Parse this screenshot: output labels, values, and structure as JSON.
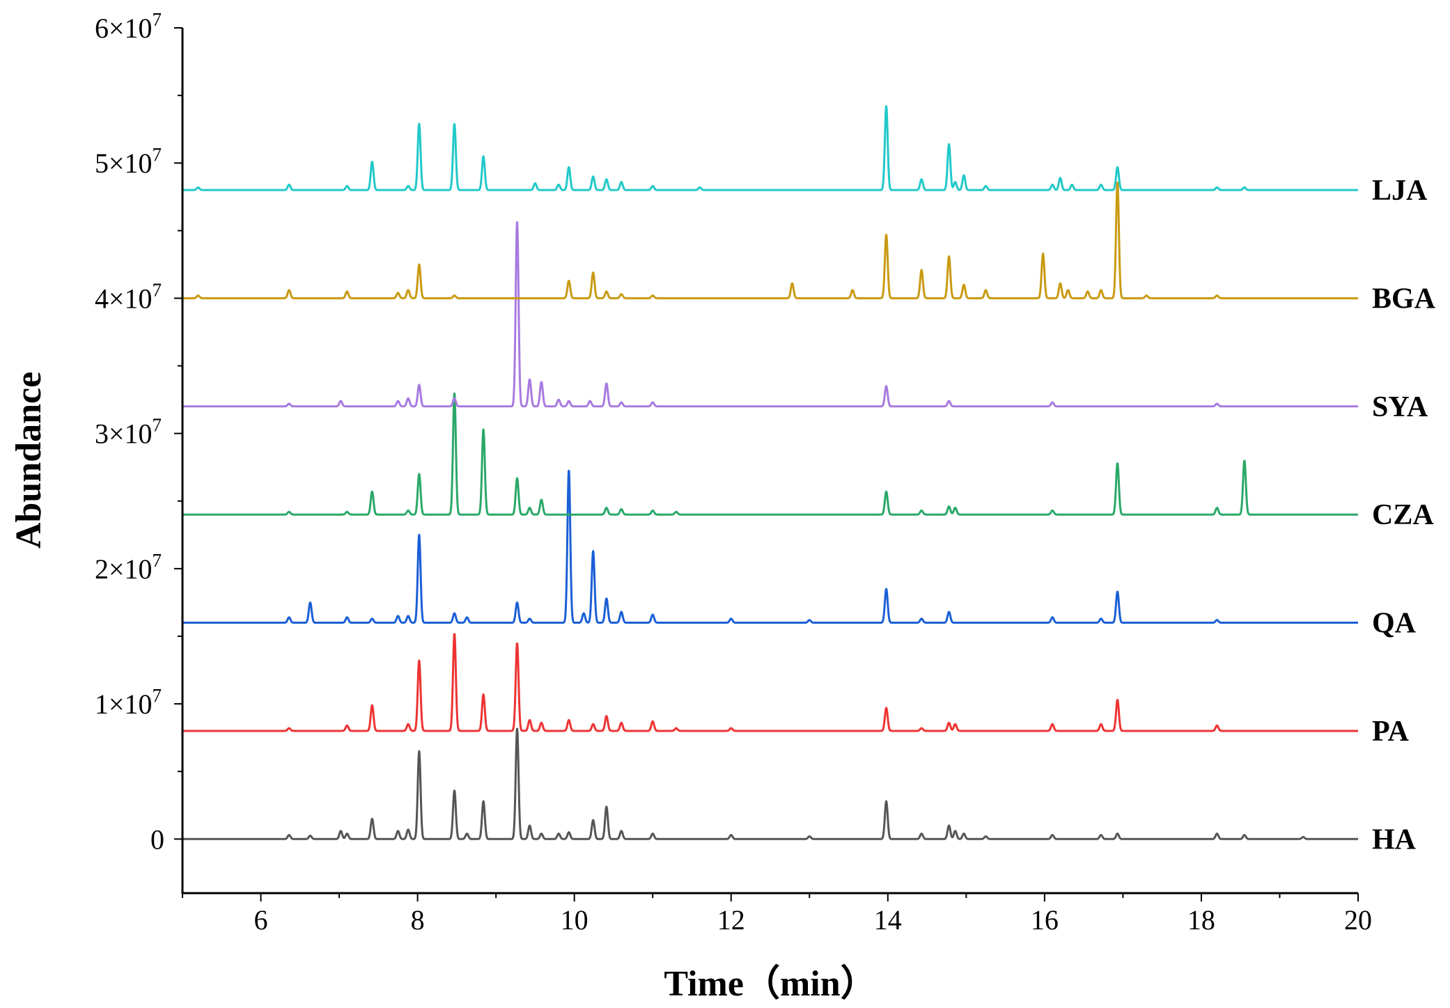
{
  "chart_data": {
    "type": "line",
    "title": "",
    "xlabel": "Time（min）",
    "ylabel": "Abundance",
    "xlim": [
      5,
      20
    ],
    "ylim": [
      -4000000,
      60000000
    ],
    "x_ticks": [
      6,
      8,
      10,
      12,
      14,
      16,
      18,
      20
    ],
    "x_tick_labels": [
      "6",
      "8",
      "10",
      "12",
      "14",
      "16",
      "18",
      "20"
    ],
    "y_ticks": [
      0,
      10000000,
      20000000,
      30000000,
      40000000,
      50000000,
      60000000
    ],
    "y_tick_labels": [
      {
        "mantissa": "0",
        "exponent": ""
      },
      {
        "mantissa": "1×10",
        "exponent": "7"
      },
      {
        "mantissa": "2×10",
        "exponent": "7"
      },
      {
        "mantissa": "3×10",
        "exponent": "7"
      },
      {
        "mantissa": "4×10",
        "exponent": "7"
      },
      {
        "mantissa": "5×10",
        "exponent": "7"
      },
      {
        "mantissa": "6×10",
        "exponent": "7"
      }
    ],
    "grid": false,
    "legend": "series labels at right end of each trace",
    "series": [
      {
        "name": "HA",
        "color": "#555555",
        "baseline": 0,
        "peaks": [
          [
            6.36,
            0.3
          ],
          [
            6.63,
            0.25
          ],
          [
            7.02,
            0.6
          ],
          [
            7.1,
            0.4
          ],
          [
            7.42,
            1.5
          ],
          [
            7.75,
            0.6
          ],
          [
            7.88,
            0.7
          ],
          [
            8.02,
            6.5
          ],
          [
            8.47,
            3.6
          ],
          [
            8.63,
            0.4
          ],
          [
            8.84,
            2.8
          ],
          [
            9.27,
            8.2
          ],
          [
            9.43,
            1.0
          ],
          [
            9.58,
            0.4
          ],
          [
            9.8,
            0.4
          ],
          [
            9.93,
            0.5
          ],
          [
            10.24,
            1.4
          ],
          [
            10.41,
            2.4
          ],
          [
            10.6,
            0.6
          ],
          [
            11.0,
            0.4
          ],
          [
            12.0,
            0.3
          ],
          [
            13.0,
            0.2
          ],
          [
            13.98,
            2.8
          ],
          [
            14.43,
            0.4
          ],
          [
            14.78,
            1.0
          ],
          [
            14.86,
            0.6
          ],
          [
            14.97,
            0.4
          ],
          [
            15.25,
            0.2
          ],
          [
            16.1,
            0.3
          ],
          [
            16.72,
            0.3
          ],
          [
            16.93,
            0.4
          ],
          [
            18.2,
            0.4
          ],
          [
            18.55,
            0.3
          ],
          [
            19.3,
            0.15
          ]
        ]
      },
      {
        "name": "PA",
        "color": "#ee3333",
        "baseline": 8000000,
        "peaks": [
          [
            6.36,
            0.2
          ],
          [
            7.1,
            0.4
          ],
          [
            7.42,
            1.9
          ],
          [
            7.88,
            0.5
          ],
          [
            8.02,
            5.2
          ],
          [
            8.47,
            7.2
          ],
          [
            8.84,
            2.7
          ],
          [
            9.27,
            6.5
          ],
          [
            9.43,
            0.8
          ],
          [
            9.58,
            0.6
          ],
          [
            9.93,
            0.8
          ],
          [
            10.24,
            0.5
          ],
          [
            10.41,
            1.1
          ],
          [
            10.6,
            0.6
          ],
          [
            11.0,
            0.7
          ],
          [
            11.3,
            0.2
          ],
          [
            12.0,
            0.2
          ],
          [
            13.98,
            1.7
          ],
          [
            14.43,
            0.2
          ],
          [
            14.78,
            0.6
          ],
          [
            14.86,
            0.5
          ],
          [
            16.1,
            0.5
          ],
          [
            16.72,
            0.5
          ],
          [
            16.93,
            2.3
          ],
          [
            18.2,
            0.4
          ]
        ]
      },
      {
        "name": "QA",
        "color": "#1a5fd6",
        "baseline": 16000000,
        "peaks": [
          [
            6.36,
            0.4
          ],
          [
            6.63,
            1.5
          ],
          [
            7.1,
            0.4
          ],
          [
            7.42,
            0.3
          ],
          [
            7.75,
            0.5
          ],
          [
            7.88,
            0.5
          ],
          [
            8.02,
            6.5
          ],
          [
            8.47,
            0.7
          ],
          [
            8.63,
            0.4
          ],
          [
            9.27,
            1.5
          ],
          [
            9.43,
            0.3
          ],
          [
            9.93,
            11.3
          ],
          [
            10.12,
            0.7
          ],
          [
            10.24,
            5.3
          ],
          [
            10.41,
            1.8
          ],
          [
            10.6,
            0.8
          ],
          [
            11.0,
            0.6
          ],
          [
            12.0,
            0.3
          ],
          [
            13.0,
            0.2
          ],
          [
            13.98,
            2.5
          ],
          [
            14.43,
            0.3
          ],
          [
            14.78,
            0.8
          ],
          [
            16.1,
            0.4
          ],
          [
            16.72,
            0.3
          ],
          [
            16.93,
            2.3
          ],
          [
            18.2,
            0.2
          ]
        ]
      },
      {
        "name": "CZA",
        "color": "#2aa868",
        "baseline": 24000000,
        "peaks": [
          [
            6.36,
            0.2
          ],
          [
            7.1,
            0.2
          ],
          [
            7.42,
            1.7
          ],
          [
            7.88,
            0.3
          ],
          [
            8.02,
            3.0
          ],
          [
            8.47,
            9.0
          ],
          [
            8.84,
            6.3
          ],
          [
            9.27,
            2.7
          ],
          [
            9.43,
            0.5
          ],
          [
            9.58,
            1.1
          ],
          [
            10.41,
            0.5
          ],
          [
            10.6,
            0.4
          ],
          [
            11.0,
            0.3
          ],
          [
            11.3,
            0.2
          ],
          [
            13.98,
            1.7
          ],
          [
            14.43,
            0.3
          ],
          [
            14.78,
            0.6
          ],
          [
            14.86,
            0.5
          ],
          [
            16.1,
            0.3
          ],
          [
            16.93,
            3.8
          ],
          [
            18.2,
            0.5
          ],
          [
            18.55,
            4.0
          ]
        ]
      },
      {
        "name": "SYA",
        "color": "#a87ae0",
        "baseline": 32000000,
        "peaks": [
          [
            6.36,
            0.2
          ],
          [
            7.02,
            0.4
          ],
          [
            7.75,
            0.4
          ],
          [
            7.88,
            0.6
          ],
          [
            8.02,
            1.6
          ],
          [
            8.47,
            0.6
          ],
          [
            9.27,
            13.7
          ],
          [
            9.43,
            2.0
          ],
          [
            9.58,
            1.8
          ],
          [
            9.8,
            0.5
          ],
          [
            9.93,
            0.4
          ],
          [
            10.2,
            0.4
          ],
          [
            10.41,
            1.7
          ],
          [
            10.6,
            0.3
          ],
          [
            11.0,
            0.3
          ],
          [
            13.98,
            1.5
          ],
          [
            14.78,
            0.4
          ],
          [
            16.1,
            0.3
          ],
          [
            18.2,
            0.2
          ]
        ]
      },
      {
        "name": "BGA",
        "color": "#c99a12",
        "baseline": 40000000,
        "peaks": [
          [
            5.2,
            0.2
          ],
          [
            6.36,
            0.6
          ],
          [
            7.1,
            0.5
          ],
          [
            7.75,
            0.4
          ],
          [
            7.88,
            0.6
          ],
          [
            8.02,
            2.5
          ],
          [
            8.47,
            0.2
          ],
          [
            9.93,
            1.3
          ],
          [
            10.24,
            1.9
          ],
          [
            10.41,
            0.5
          ],
          [
            10.6,
            0.3
          ],
          [
            11.0,
            0.2
          ],
          [
            12.78,
            1.1
          ],
          [
            13.55,
            0.6
          ],
          [
            13.98,
            4.7
          ],
          [
            14.43,
            2.1
          ],
          [
            14.78,
            3.1
          ],
          [
            14.97,
            1.0
          ],
          [
            15.25,
            0.6
          ],
          [
            15.98,
            3.3
          ],
          [
            16.2,
            1.1
          ],
          [
            16.3,
            0.6
          ],
          [
            16.55,
            0.5
          ],
          [
            16.72,
            0.6
          ],
          [
            16.93,
            8.6
          ],
          [
            17.3,
            0.2
          ],
          [
            18.2,
            0.2
          ]
        ]
      },
      {
        "name": "LJA",
        "color": "#22c8c8",
        "baseline": 48000000,
        "peaks": [
          [
            5.2,
            0.2
          ],
          [
            6.36,
            0.4
          ],
          [
            7.1,
            0.3
          ],
          [
            7.42,
            2.1
          ],
          [
            7.88,
            0.3
          ],
          [
            8.02,
            4.9
          ],
          [
            8.47,
            4.9
          ],
          [
            8.84,
            2.5
          ],
          [
            9.5,
            0.5
          ],
          [
            9.8,
            0.4
          ],
          [
            9.93,
            1.7
          ],
          [
            10.24,
            1.0
          ],
          [
            10.41,
            0.8
          ],
          [
            10.6,
            0.6
          ],
          [
            11.0,
            0.3
          ],
          [
            11.6,
            0.2
          ],
          [
            13.98,
            6.2
          ],
          [
            14.43,
            0.8
          ],
          [
            14.78,
            3.4
          ],
          [
            14.86,
            0.6
          ],
          [
            14.97,
            1.1
          ],
          [
            15.25,
            0.3
          ],
          [
            16.1,
            0.4
          ],
          [
            16.2,
            0.9
          ],
          [
            16.35,
            0.4
          ],
          [
            16.72,
            0.4
          ],
          [
            16.93,
            1.7
          ],
          [
            18.2,
            0.2
          ],
          [
            18.55,
            0.2
          ]
        ]
      }
    ]
  }
}
